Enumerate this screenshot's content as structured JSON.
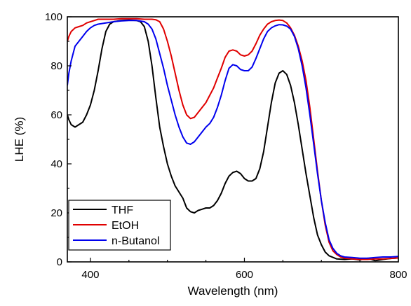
{
  "chart_data": {
    "type": "line",
    "xlabel": "Wavelength (nm)",
    "ylabel": "LHE (%)",
    "xlim": [
      370,
      800
    ],
    "ylim": [
      0,
      100
    ],
    "x_ticks": [
      400,
      600,
      800
    ],
    "y_ticks": [
      0,
      20,
      40,
      60,
      80,
      100
    ],
    "grid": false,
    "legend_position": "bottom-left",
    "series": [
      {
        "name": "THF",
        "color": "#000000",
        "x": [
          370,
          372,
          375,
          380,
          385,
          390,
          395,
          400,
          405,
          410,
          415,
          420,
          425,
          430,
          440,
          450,
          460,
          465,
          470,
          475,
          480,
          485,
          490,
          495,
          500,
          505,
          510,
          520,
          525,
          530,
          535,
          540,
          545,
          550,
          555,
          560,
          565,
          570,
          575,
          580,
          585,
          590,
          595,
          600,
          605,
          610,
          615,
          620,
          625,
          630,
          635,
          640,
          645,
          650,
          655,
          660,
          665,
          670,
          675,
          680,
          685,
          690,
          695,
          700,
          705,
          710,
          720,
          730,
          740,
          750,
          760,
          770,
          780,
          790,
          800
        ],
        "y": [
          60,
          58,
          56,
          55,
          56,
          57,
          60,
          64,
          70,
          78,
          87,
          94,
          97,
          98,
          98.5,
          98.7,
          98.5,
          98,
          96,
          90,
          80,
          67,
          55,
          47,
          40,
          35,
          31,
          26,
          22,
          20.5,
          20,
          21,
          21.5,
          22,
          22,
          23,
          25,
          28,
          32,
          35,
          36.5,
          37,
          36,
          34,
          33,
          33,
          34,
          38,
          45,
          55,
          65,
          73,
          77,
          78,
          76.5,
          72,
          65,
          56,
          46,
          36,
          27,
          18,
          11,
          7,
          4,
          2.5,
          1.2,
          1.0,
          1.2,
          0.8,
          1.5,
          0.5,
          1.0,
          1.4,
          1.6
        ]
      },
      {
        "name": "EtOH",
        "color": "#e00000",
        "x": [
          370,
          372,
          375,
          380,
          385,
          390,
          395,
          400,
          405,
          410,
          420,
          430,
          440,
          450,
          460,
          470,
          480,
          485,
          490,
          495,
          500,
          505,
          510,
          515,
          520,
          525,
          530,
          535,
          540,
          545,
          550,
          555,
          560,
          565,
          570,
          575,
          580,
          585,
          590,
          595,
          600,
          605,
          610,
          615,
          620,
          625,
          630,
          635,
          640,
          645,
          650,
          655,
          660,
          665,
          670,
          675,
          680,
          685,
          690,
          695,
          700,
          705,
          710,
          715,
          720,
          725,
          730,
          740,
          750,
          760,
          770,
          780,
          790,
          800
        ],
        "y": [
          90,
          92,
          94,
          95.5,
          96,
          96.5,
          97.5,
          98,
          98.5,
          99,
          99,
          99,
          99.2,
          99.2,
          99.2,
          99,
          99,
          98.8,
          98,
          95,
          90,
          84,
          77,
          70,
          64,
          60,
          58.5,
          59,
          61,
          63,
          65,
          68,
          71,
          75,
          79,
          83.5,
          86,
          86.5,
          86,
          84.5,
          84,
          84.5,
          86,
          89,
          92.5,
          95,
          97,
          98,
          98.5,
          98.7,
          98.5,
          97.5,
          95.5,
          92.5,
          88,
          82,
          74,
          63,
          50,
          37,
          25,
          15,
          8,
          4.5,
          3,
          2,
          1.5,
          1.2,
          1.0,
          1.0,
          1.2,
          1.2,
          1.4,
          1.6
        ]
      },
      {
        "name": "n-Butanol",
        "color": "#0000ee",
        "x": [
          370,
          372,
          375,
          380,
          385,
          390,
          395,
          400,
          405,
          410,
          420,
          430,
          440,
          450,
          460,
          470,
          475,
          480,
          485,
          490,
          495,
          500,
          505,
          510,
          515,
          520,
          525,
          530,
          535,
          540,
          545,
          550,
          555,
          560,
          565,
          570,
          575,
          580,
          585,
          590,
          595,
          600,
          605,
          610,
          615,
          620,
          625,
          630,
          635,
          640,
          645,
          650,
          655,
          660,
          665,
          670,
          675,
          680,
          685,
          690,
          695,
          700,
          705,
          710,
          715,
          720,
          725,
          730,
          740,
          750,
          760,
          770,
          780,
          790,
          800
        ],
        "y": [
          72,
          77,
          82,
          88,
          90,
          92,
          94,
          95.5,
          96.5,
          97,
          97.5,
          98,
          98.3,
          98.5,
          98.5,
          98,
          97,
          95,
          91,
          85,
          79,
          72,
          66,
          60,
          55,
          51,
          48.5,
          48,
          49,
          51,
          53,
          55,
          56.5,
          59,
          63,
          68,
          74,
          79,
          80.5,
          80,
          78.5,
          78,
          78,
          79.5,
          83,
          87,
          91,
          94,
          95.5,
          96.3,
          96.8,
          96.7,
          96.2,
          95,
          92,
          87,
          80,
          71,
          60,
          48,
          36,
          25,
          16,
          9,
          5.5,
          3.5,
          2.5,
          2,
          1.8,
          1.5,
          1.5,
          1.8,
          2,
          2,
          2.2
        ]
      }
    ]
  }
}
